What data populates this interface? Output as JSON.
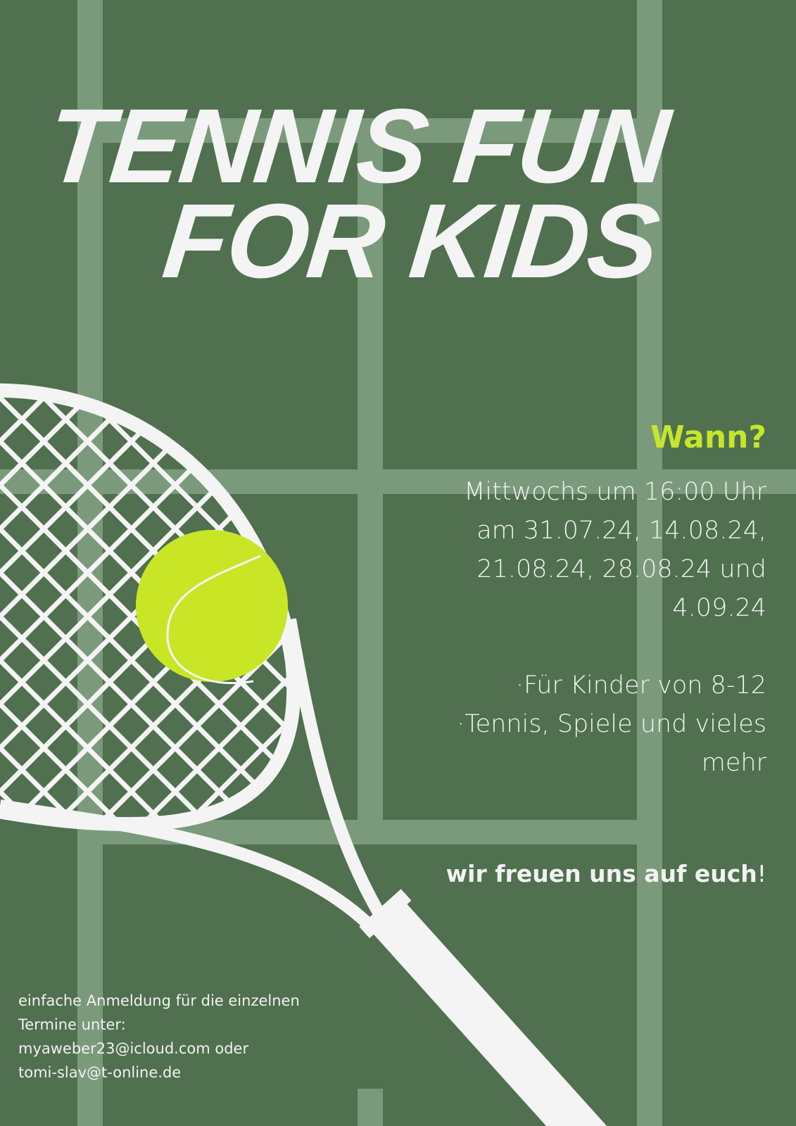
{
  "title": {
    "line1": "TENNIS FUN",
    "line2": "FOR KIDS"
  },
  "when": {
    "heading": "Wann?",
    "lines": [
      "Mittwochs um 16:00 Uhr",
      "am 31.07.24, 14.08.24,",
      "21.08.24, 28.08.24 und",
      "4.09.24"
    ]
  },
  "details": [
    "·Für Kinder von 8-12",
    "·Tennis, Spiele und vieles",
    "mehr"
  ],
  "closing": {
    "text": "wir freuen uns auf euch",
    "punct": "!"
  },
  "footer": {
    "lines": [
      "einfache Anmeldung für die einzelnen",
      "Termine unter:",
      "myaweber23@icloud.com oder",
      "tomi-slav@t-online.de"
    ]
  },
  "colors": {
    "background": "#50704f",
    "court_lines": "#7b9a7c",
    "accent": "#c5e62a",
    "ball": "#c8e626",
    "racquet": "#f4f4f4"
  },
  "icons": {
    "racquet": "tennis-racquet-illustration",
    "ball": "tennis-ball-illustration"
  }
}
